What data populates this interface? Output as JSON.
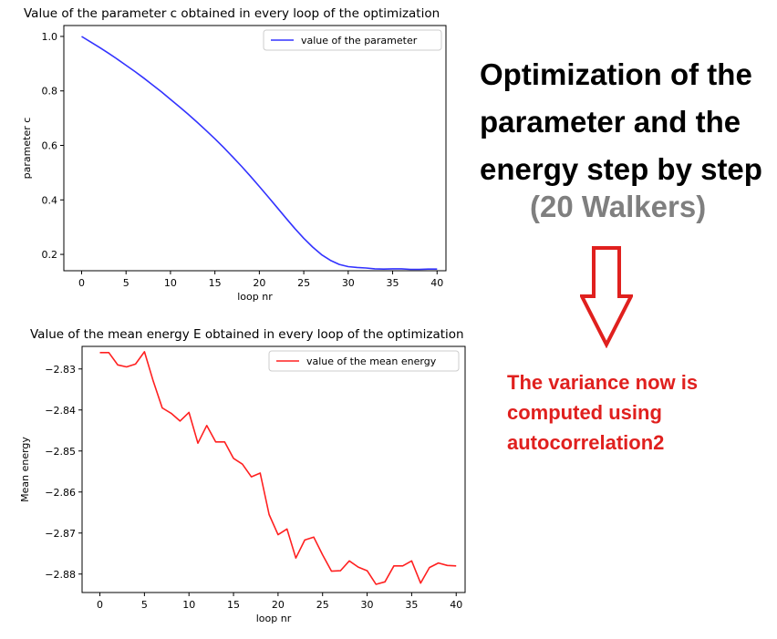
{
  "side_panel": {
    "title": "Optimization of the parameter and the energy step by step",
    "subtitle": "(20 Walkers)",
    "note": "The variance now is computed using autocorrelation2",
    "colors": {
      "title": "#000000",
      "subtitle": "#7f7f7f",
      "note": "#e0201e",
      "arrow": "#e0201e"
    },
    "arrow_icon": "down-arrow-icon"
  },
  "chart_data": [
    {
      "type": "line",
      "title": "Value of the parameter c obtained in every loop of the optimization",
      "xlabel": "loop nr",
      "ylabel": "parameter c",
      "xlim": [
        -2,
        41
      ],
      "ylim": [
        0.14,
        1.04
      ],
      "xticks": [
        0,
        5,
        10,
        15,
        20,
        25,
        30,
        35,
        40
      ],
      "xtick_labels": [
        "0",
        "5",
        "10",
        "15",
        "20",
        "25",
        "30",
        "35",
        "40"
      ],
      "yticks": [
        0.2,
        0.4,
        0.6,
        0.8,
        1.0
      ],
      "ytick_labels": [
        "0.2",
        "0.4",
        "0.6",
        "0.8",
        "1.0"
      ],
      "grid": false,
      "legend_position": "top-right",
      "series": [
        {
          "name": "value of the parameter",
          "color": "#3333ff",
          "x": [
            0,
            1,
            2,
            3,
            4,
            5,
            6,
            7,
            8,
            9,
            10,
            11,
            12,
            13,
            14,
            15,
            16,
            17,
            18,
            19,
            20,
            21,
            22,
            23,
            24,
            25,
            26,
            27,
            28,
            29,
            30,
            31,
            32,
            33,
            34,
            35,
            36,
            37,
            38,
            39,
            40
          ],
          "values": [
            1.0,
            0.98,
            0.96,
            0.939,
            0.917,
            0.894,
            0.871,
            0.847,
            0.822,
            0.796,
            0.769,
            0.742,
            0.714,
            0.685,
            0.655,
            0.624,
            0.592,
            0.558,
            0.523,
            0.487,
            0.449,
            0.411,
            0.372,
            0.333,
            0.295,
            0.259,
            0.227,
            0.199,
            0.178,
            0.163,
            0.155,
            0.152,
            0.15,
            0.147,
            0.146,
            0.147,
            0.147,
            0.145,
            0.145,
            0.146,
            0.146
          ]
        }
      ]
    },
    {
      "type": "line",
      "title": "Value of the mean energy E obtained in every loop of the optimization",
      "xlabel": "loop nr",
      "ylabel": "Mean energy",
      "xlim": [
        -2,
        41
      ],
      "ylim": [
        -2.8845,
        -2.8245
      ],
      "xticks": [
        0,
        5,
        10,
        15,
        20,
        25,
        30,
        35,
        40
      ],
      "xtick_labels": [
        "0",
        "5",
        "10",
        "15",
        "20",
        "25",
        "30",
        "35",
        "40"
      ],
      "yticks": [
        -2.83,
        -2.84,
        -2.85,
        -2.86,
        -2.87,
        -2.88
      ],
      "ytick_labels": [
        "−2.83",
        "−2.84",
        "−2.85",
        "−2.86",
        "−2.87",
        "−2.88"
      ],
      "grid": false,
      "legend_position": "top-right",
      "series": [
        {
          "name": "value of the mean energy",
          "color": "#ff2020",
          "x": [
            0,
            1,
            2,
            3,
            4,
            5,
            6,
            7,
            8,
            9,
            10,
            11,
            12,
            13,
            14,
            15,
            16,
            17,
            18,
            19,
            20,
            21,
            22,
            23,
            24,
            25,
            26,
            27,
            28,
            29,
            30,
            31,
            32,
            33,
            34,
            35,
            36,
            37,
            38,
            39,
            40
          ],
          "values": [
            -2.826,
            -2.826,
            -2.829,
            -2.8295,
            -2.8288,
            -2.8258,
            -2.833,
            -2.8395,
            -2.8408,
            -2.8427,
            -2.8406,
            -2.8481,
            -2.8438,
            -2.8478,
            -2.8478,
            -2.8518,
            -2.8532,
            -2.8563,
            -2.8554,
            -2.8655,
            -2.8704,
            -2.869,
            -2.8761,
            -2.8717,
            -2.871,
            -2.8753,
            -2.8793,
            -2.8792,
            -2.8768,
            -2.8783,
            -2.8792,
            -2.8825,
            -2.8819,
            -2.878,
            -2.878,
            -2.8768,
            -2.8822,
            -2.8784,
            -2.8773,
            -2.8779,
            -2.878
          ]
        }
      ]
    }
  ]
}
